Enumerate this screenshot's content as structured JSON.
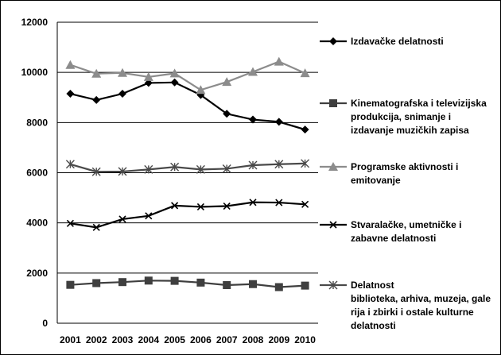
{
  "chart_data": {
    "type": "line",
    "x": [
      "2001",
      "2002",
      "2003",
      "2004",
      "2005",
      "2006",
      "2007",
      "2008",
      "2009",
      "2010"
    ],
    "ylim": [
      0,
      12000
    ],
    "yticks": [
      0,
      2000,
      4000,
      6000,
      8000,
      10000,
      12000
    ],
    "ytick_labels": [
      "0",
      "2000",
      "4000",
      "6000",
      "8000",
      "10000",
      "12000"
    ],
    "grid": true,
    "legend_placement": "right",
    "series": [
      {
        "name_lines": [
          "Izdavačke delatnosti"
        ],
        "marker": "diamond",
        "color": "#000000",
        "values": [
          9150,
          8900,
          9150,
          9580,
          9600,
          9100,
          8350,
          8120,
          8030,
          7720
        ]
      },
      {
        "name_lines": [
          "Kinematografska i televizijska",
          "produkcija, snimanje i",
          "izdavanje muzičkih zapisa"
        ],
        "marker": "square",
        "color": "#3f3f3f",
        "values": [
          1530,
          1600,
          1640,
          1700,
          1690,
          1620,
          1520,
          1560,
          1440,
          1500
        ]
      },
      {
        "name_lines": [
          "Programske aktivnosti i",
          "emitovanje"
        ],
        "marker": "triangle",
        "color": "#8c8c8c",
        "values": [
          10300,
          9950,
          9980,
          9820,
          9960,
          9300,
          9620,
          10020,
          10430,
          9970
        ]
      },
      {
        "name_lines": [
          "Stvaralačke, umetničke i",
          "zabavne delatnosti"
        ],
        "marker": "x",
        "color": "#000000",
        "values": [
          3980,
          3820,
          4150,
          4280,
          4690,
          4640,
          4670,
          4820,
          4810,
          4740
        ]
      },
      {
        "name_lines": [
          "Delatnost",
          "biblioteka, arhiva, muzeja, gale",
          "rija i zbirki i ostale kulturne",
          "delatnosti"
        ],
        "marker": "star",
        "color": "#4a4a4a",
        "values": [
          6340,
          6040,
          6050,
          6130,
          6230,
          6130,
          6160,
          6300,
          6340,
          6370
        ]
      }
    ]
  }
}
